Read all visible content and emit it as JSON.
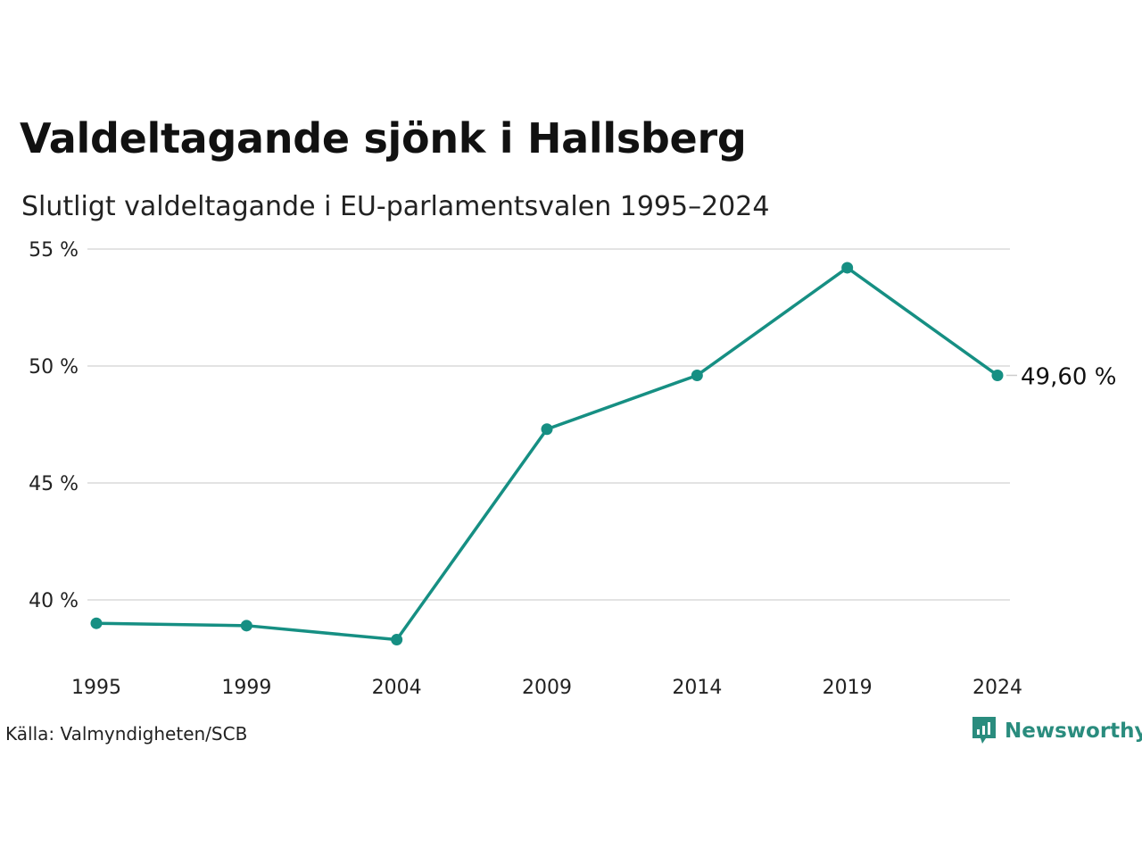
{
  "header": {
    "title": "Valdeltagande sjönk i Hallsberg",
    "subtitle": "Slutligt valdeltagande i EU-parlamentsvalen 1995–2024"
  },
  "footer": {
    "source": "Källa: Valmyndigheten/SCB",
    "brand": "Newsworthy",
    "brand_icon": "newsworthy-logo-icon"
  },
  "colors": {
    "line": "#168f83",
    "grid": "#e3e3e3",
    "brand": "#2a8c7e"
  },
  "chart_data": {
    "type": "line",
    "categories": [
      "1995",
      "1999",
      "2004",
      "2009",
      "2014",
      "2019",
      "2024"
    ],
    "series": [
      {
        "values": [
          39.0,
          38.9,
          38.3,
          47.3,
          49.6,
          54.2,
          49.6
        ]
      }
    ],
    "yticks": [
      40,
      45,
      50,
      55
    ],
    "ytick_labels": [
      "40 %",
      "45 %",
      "50 %",
      "55 %"
    ],
    "ylim": [
      38.3,
      55
    ],
    "end_label": "49,60 %",
    "grid": true,
    "legend": "none"
  }
}
